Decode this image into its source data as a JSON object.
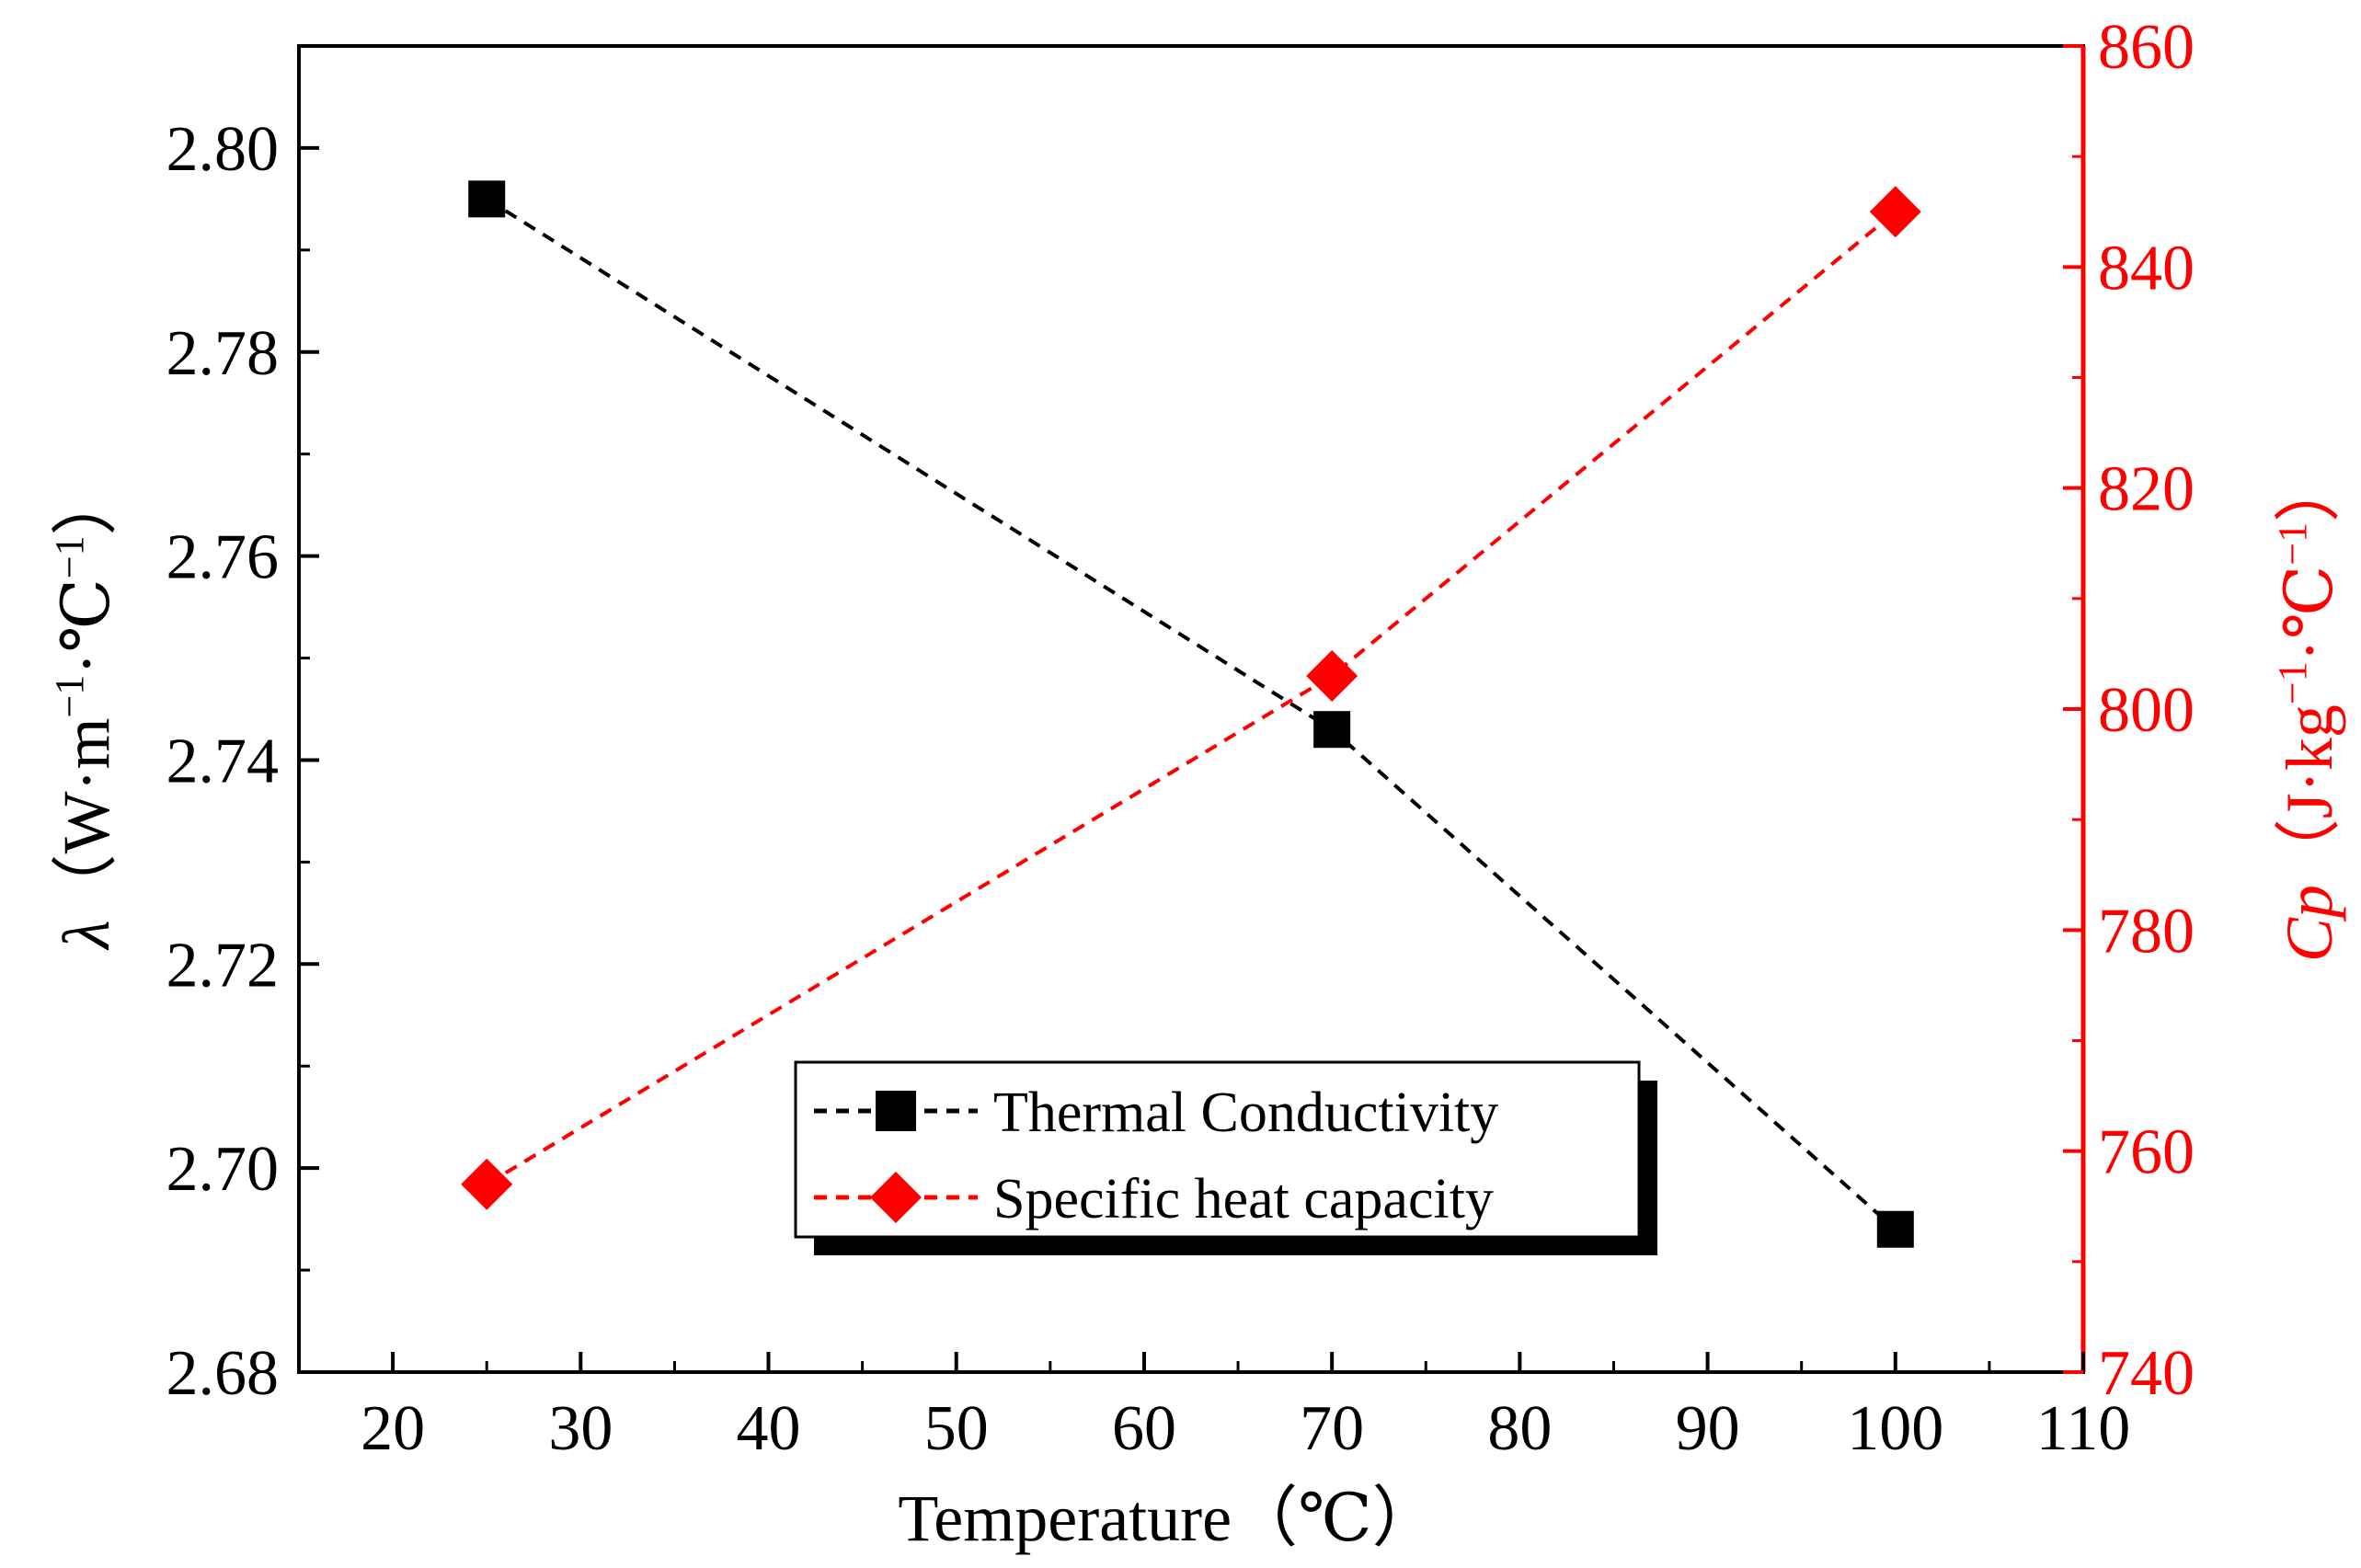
{
  "chart_data": {
    "type": "line",
    "title": "",
    "x": [
      25,
      70,
      100
    ],
    "xlabel": "Temperature（℃）",
    "xlim": [
      15,
      110
    ],
    "xticks": [
      20,
      30,
      40,
      50,
      60,
      70,
      80,
      90,
      100,
      110
    ],
    "ylabel_left": {
      "symbol": "λ",
      "unit_prefix": "（W·m",
      "exp1": "−1",
      "unit_mid": "·℃",
      "exp2": "−1",
      "unit_suffix": "）"
    },
    "ylim_left": [
      2.68,
      2.81
    ],
    "yticks_left": [
      "2.68",
      "2.70",
      "2.72",
      "2.74",
      "2.76",
      "2.78",
      "2.80"
    ],
    "ylabel_right": {
      "symbol": "Cp",
      "unit_prefix": "（J·kg",
      "exp1": "−1",
      "unit_mid": "·℃",
      "exp2": "−1",
      "unit_suffix": "）"
    },
    "ylim_right": [
      740,
      860
    ],
    "yticks_right": [
      "740",
      "760",
      "780",
      "800",
      "820",
      "840",
      "860"
    ],
    "series": [
      {
        "name": "Thermal Conductivity",
        "axis": "left",
        "values": [
          2.795,
          2.743,
          2.694
        ],
        "color": "#000000",
        "marker": "square",
        "linestyle": "dashed"
      },
      {
        "name": "Specific heat capacity",
        "axis": "right",
        "values": [
          757,
          803,
          845
        ],
        "color": "#ff0000",
        "marker": "diamond",
        "linestyle": "dashed"
      }
    ],
    "legend": {
      "position": "bottom-center",
      "entries": [
        "Thermal Conductivity",
        "Specific heat capacity"
      ]
    },
    "colors": {
      "left_axis": "#000000",
      "right_axis": "#ff0000"
    }
  }
}
